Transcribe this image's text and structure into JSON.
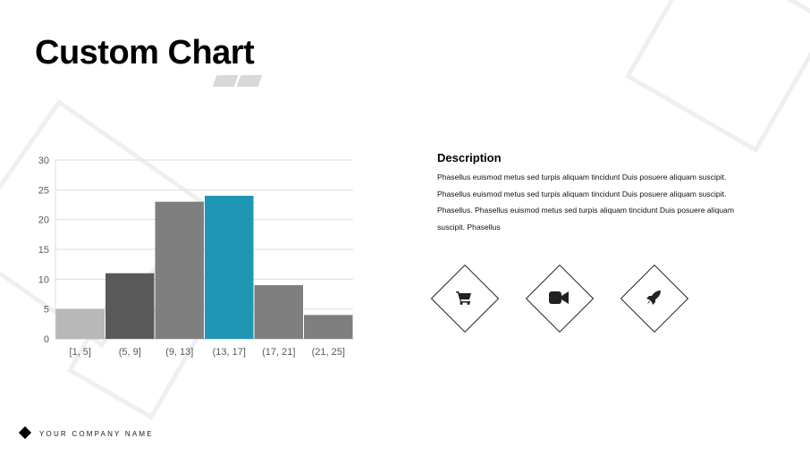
{
  "title": "Custom Chart",
  "description": {
    "heading": "Description",
    "body": "Phasellus euismod metus sed turpis aliquam tincidunt Duis posuere aliquam suscipit. Phasellus euismod metus sed turpis aliquam tincidunt Duis posuere aliquam suscipit. Phasellus. Phasellus euismod metus sed turpis aliquam tincidunt Duis posuere aliquam suscipit. Phasellus"
  },
  "icons": [
    "shopping-cart-icon",
    "video-camera-icon",
    "rocket-icon"
  ],
  "footer": {
    "company": "YOUR COMPANY NAME"
  },
  "chart_data": {
    "type": "bar",
    "categories": [
      "[1, 5]",
      "(5, 9]",
      "(9, 13]",
      "(13, 17]",
      "(17, 21]",
      "(21, 25]"
    ],
    "values": [
      5,
      11,
      23,
      24,
      9,
      4
    ],
    "colors": [
      "#b8b8b8",
      "#595959",
      "#7f7f7f",
      "#1f97b4",
      "#7f7f7f",
      "#7f7f7f"
    ],
    "yticks": [
      0,
      5,
      10,
      15,
      20,
      25,
      30
    ],
    "ylim": [
      0,
      30
    ],
    "grid": true,
    "title": "",
    "xlabel": "",
    "ylabel": ""
  }
}
